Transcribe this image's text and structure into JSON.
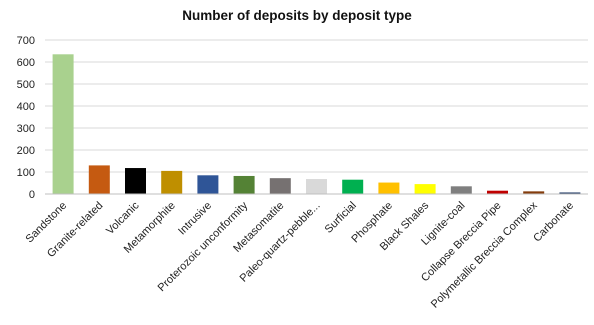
{
  "chart_data": {
    "type": "bar",
    "title": "Number of deposits by deposit type",
    "xlabel": "",
    "ylabel": "",
    "categories": [
      "Sandstone",
      "Granite-related",
      "Volcanic",
      "Metamorphite",
      "Intrusive",
      "Proterozoic unconformity",
      "Metasomatite",
      "Paleo-quartz-pebble...",
      "Surficial",
      "Phosphate",
      "Black Shales",
      "Lignite-coal",
      "Collapse Breccia Pipe",
      "Polymetallic Breccia Complex",
      "Carbonate"
    ],
    "values": [
      635,
      130,
      118,
      105,
      85,
      82,
      72,
      68,
      65,
      52,
      45,
      35,
      15,
      12,
      7
    ],
    "colors": [
      "#a9d18e",
      "#c55a11",
      "#000000",
      "#bf8f00",
      "#2f5597",
      "#548235",
      "#767171",
      "#d9d9d9",
      "#00b050",
      "#ffc000",
      "#ffff00",
      "#7f7f7f",
      "#c00000",
      "#843c0c",
      "#1f3864"
    ],
    "ylim": [
      0,
      700
    ],
    "yticks": [
      0,
      100,
      200,
      300,
      400,
      500,
      600,
      700
    ],
    "grid": true,
    "legend": "none"
  }
}
